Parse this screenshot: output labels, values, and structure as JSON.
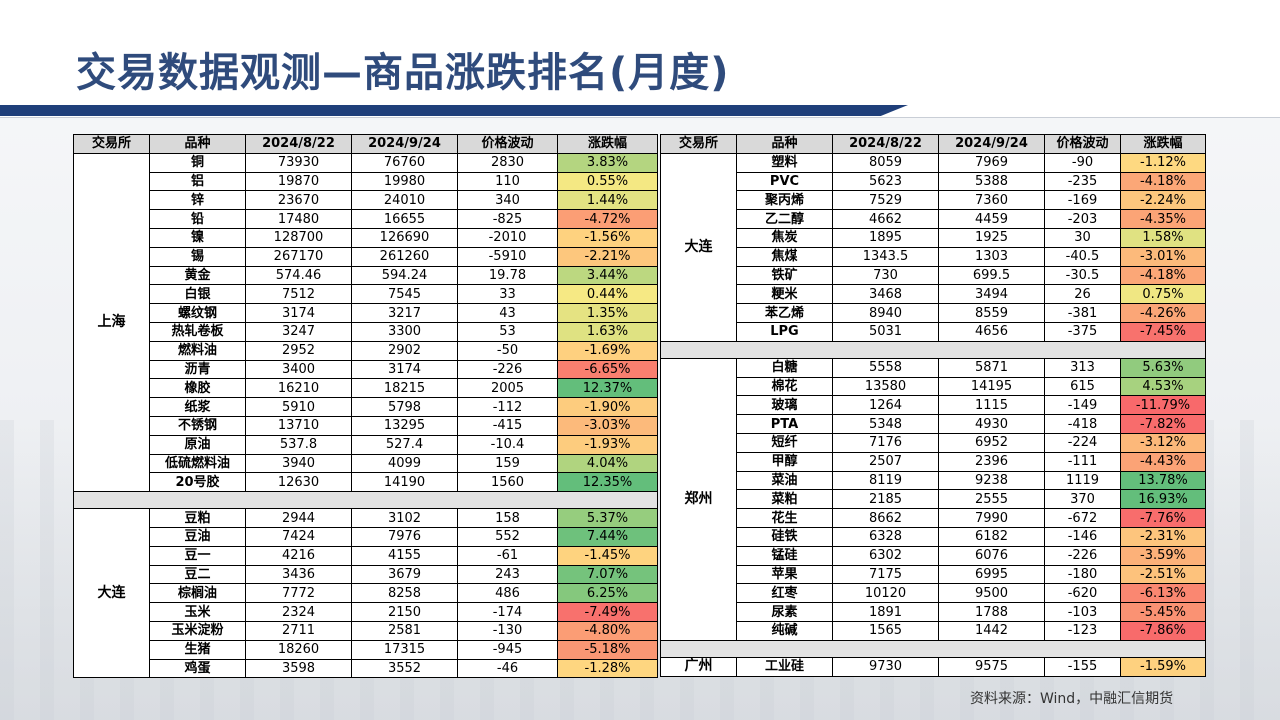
{
  "title": "交易数据观测—商品涨跌排名(月度)",
  "source": "资料来源：Wind，中融汇信期货",
  "headers": [
    "交易所",
    "品种",
    "2024/8/22",
    "2024/9/24",
    "价格波动",
    "涨跌幅"
  ],
  "left_groups": [
    {
      "exchange": "上海",
      "rows": [
        [
          "铜",
          "73930",
          "76760",
          "2830",
          "3.83%"
        ],
        [
          "铝",
          "19870",
          "19980",
          "110",
          "0.55%"
        ],
        [
          "锌",
          "23670",
          "24010",
          "340",
          "1.44%"
        ],
        [
          "铅",
          "17480",
          "16655",
          "-825",
          "-4.72%"
        ],
        [
          "镍",
          "128700",
          "126690",
          "-2010",
          "-1.56%"
        ],
        [
          "锡",
          "267170",
          "261260",
          "-5910",
          "-2.21%"
        ],
        [
          "黄金",
          "574.46",
          "594.24",
          "19.78",
          "3.44%"
        ],
        [
          "白银",
          "7512",
          "7545",
          "33",
          "0.44%"
        ],
        [
          "螺纹钢",
          "3174",
          "3217",
          "43",
          "1.35%"
        ],
        [
          "热轧卷板",
          "3247",
          "3300",
          "53",
          "1.63%"
        ],
        [
          "燃料油",
          "2952",
          "2902",
          "-50",
          "-1.69%"
        ],
        [
          "沥青",
          "3400",
          "3174",
          "-226",
          "-6.65%"
        ],
        [
          "橡胶",
          "16210",
          "18215",
          "2005",
          "12.37%"
        ],
        [
          "纸浆",
          "5910",
          "5798",
          "-112",
          "-1.90%"
        ],
        [
          "不锈钢",
          "13710",
          "13295",
          "-415",
          "-3.03%"
        ],
        [
          "原油",
          "537.8",
          "527.4",
          "-10.4",
          "-1.93%"
        ],
        [
          "低硫燃料油",
          "3940",
          "4099",
          "159",
          "4.04%"
        ],
        [
          "20号胶",
          "12630",
          "14190",
          "1560",
          "12.35%"
        ]
      ]
    },
    {
      "exchange": "大连",
      "rows": [
        [
          "豆粕",
          "2944",
          "3102",
          "158",
          "5.37%"
        ],
        [
          "豆油",
          "7424",
          "7976",
          "552",
          "7.44%"
        ],
        [
          "豆一",
          "4216",
          "4155",
          "-61",
          "-1.45%"
        ],
        [
          "豆二",
          "3436",
          "3679",
          "243",
          "7.07%"
        ],
        [
          "棕榈油",
          "7772",
          "8258",
          "486",
          "6.25%"
        ],
        [
          "玉米",
          "2324",
          "2150",
          "-174",
          "-7.49%"
        ],
        [
          "玉米淀粉",
          "2711",
          "2581",
          "-130",
          "-4.80%"
        ],
        [
          "生猪",
          "18260",
          "17315",
          "-945",
          "-5.18%"
        ],
        [
          "鸡蛋",
          "3598",
          "3552",
          "-46",
          "-1.28%"
        ]
      ]
    }
  ],
  "right_groups": [
    {
      "exchange": "大连",
      "rows": [
        [
          "塑料",
          "8059",
          "7969",
          "-90",
          "-1.12%"
        ],
        [
          "PVC",
          "5623",
          "5388",
          "-235",
          "-4.18%"
        ],
        [
          "聚丙烯",
          "7529",
          "7360",
          "-169",
          "-2.24%"
        ],
        [
          "乙二醇",
          "4662",
          "4459",
          "-203",
          "-4.35%"
        ],
        [
          "焦炭",
          "1895",
          "1925",
          "30",
          "1.58%"
        ],
        [
          "焦煤",
          "1343.5",
          "1303",
          "-40.5",
          "-3.01%"
        ],
        [
          "铁矿",
          "730",
          "699.5",
          "-30.5",
          "-4.18%"
        ],
        [
          "粳米",
          "3468",
          "3494",
          "26",
          "0.75%"
        ],
        [
          "苯乙烯",
          "8940",
          "8559",
          "-381",
          "-4.26%"
        ],
        [
          "LPG",
          "5031",
          "4656",
          "-375",
          "-7.45%"
        ]
      ]
    },
    {
      "exchange": "郑州",
      "rows": [
        [
          "白糖",
          "5558",
          "5871",
          "313",
          "5.63%"
        ],
        [
          "棉花",
          "13580",
          "14195",
          "615",
          "4.53%"
        ],
        [
          "玻璃",
          "1264",
          "1115",
          "-149",
          "-11.79%"
        ],
        [
          "PTA",
          "5348",
          "4930",
          "-418",
          "-7.82%"
        ],
        [
          "短纤",
          "7176",
          "6952",
          "-224",
          "-3.12%"
        ],
        [
          "甲醇",
          "2507",
          "2396",
          "-111",
          "-4.43%"
        ],
        [
          "菜油",
          "8119",
          "9238",
          "1119",
          "13.78%"
        ],
        [
          "菜粕",
          "2185",
          "2555",
          "370",
          "16.93%"
        ],
        [
          "花生",
          "8662",
          "7990",
          "-672",
          "-7.76%"
        ],
        [
          "硅铁",
          "6328",
          "6182",
          "-146",
          "-2.31%"
        ],
        [
          "锰硅",
          "6302",
          "6076",
          "-226",
          "-3.59%"
        ],
        [
          "苹果",
          "7175",
          "6995",
          "-180",
          "-2.51%"
        ],
        [
          "红枣",
          "10120",
          "9500",
          "-620",
          "-6.13%"
        ],
        [
          "尿素",
          "1891",
          "1788",
          "-103",
          "-5.45%"
        ],
        [
          "纯碱",
          "1565",
          "1442",
          "-123",
          "-7.86%"
        ]
      ]
    },
    {
      "exchange": "广州",
      "rows": [
        [
          "工业硅",
          "9730",
          "9575",
          "-155",
          "-1.59%"
        ]
      ]
    }
  ]
}
